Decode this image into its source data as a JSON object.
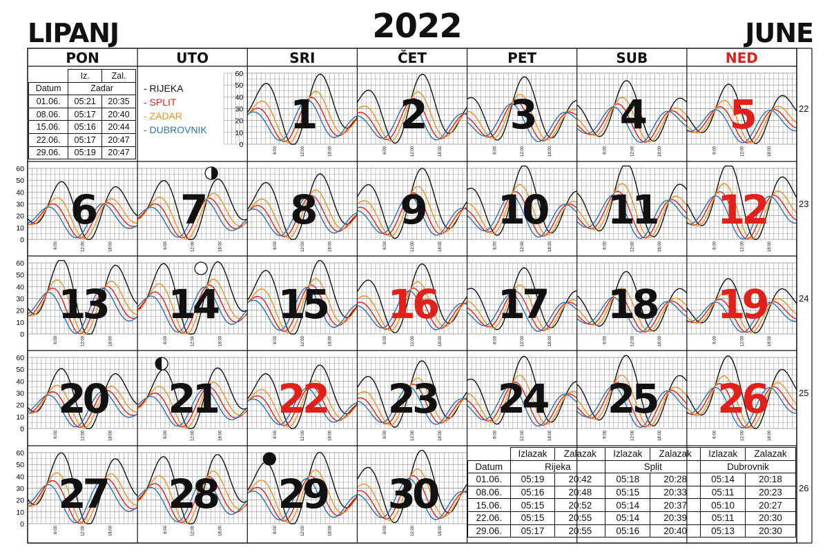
{
  "header": {
    "left_title": "LIPANJ",
    "year": "2022",
    "right_title": "JUNE"
  },
  "weekdays": [
    {
      "label": "PON",
      "color": "#111111"
    },
    {
      "label": "UTO",
      "color": "#111111"
    },
    {
      "label": "SRI",
      "color": "#111111"
    },
    {
      "label": "ČET",
      "color": "#111111"
    },
    {
      "label": "PET",
      "color": "#111111"
    },
    {
      "label": "SUB",
      "color": "#111111"
    },
    {
      "label": "NED",
      "color": "#e0201a"
    }
  ],
  "week_numbers": [
    "22",
    "23",
    "24",
    "25",
    "26"
  ],
  "legend": [
    {
      "label": "- RIJEKA",
      "color": "#111111"
    },
    {
      "label": "- SPLIT",
      "color": "#e0201a"
    },
    {
      "label": "- ZADAR",
      "color": "#f0901c"
    },
    {
      "label": "- DUBROVNIK",
      "color": "#2a6fb8"
    }
  ],
  "sun_table_small": {
    "header": [
      "",
      "Iz.",
      "Zal."
    ],
    "subheader": [
      "Datum",
      "Zadar"
    ],
    "rows": [
      [
        "01.06.",
        "05:21",
        "20:35"
      ],
      [
        "08.06.",
        "05:17",
        "20:40"
      ],
      [
        "15.06.",
        "05:16",
        "20:44"
      ],
      [
        "22.06.",
        "05:17",
        "20:47"
      ],
      [
        "29.06.",
        "05:19",
        "20:47"
      ]
    ]
  },
  "sun_table_big": {
    "header": [
      "",
      "Izlazak",
      "Zalazak",
      "Izlazak",
      "Zalazak",
      "Izlazak",
      "Zalazak"
    ],
    "subheader": [
      "Datum",
      "Rijeka",
      "Split",
      "Dubrovnik"
    ],
    "rows": [
      [
        "01.06.",
        "05:19",
        "20:42",
        "05:18",
        "20:28",
        "05:14",
        "20:18"
      ],
      [
        "08.06.",
        "05:16",
        "20:48",
        "05:15",
        "20:33",
        "05:11",
        "20:23"
      ],
      [
        "15.06.",
        "05:15",
        "20:52",
        "05:14",
        "20:37",
        "05:10",
        "20:27"
      ],
      [
        "22.06.",
        "05:15",
        "20:55",
        "05:14",
        "20:39",
        "05:11",
        "20:30"
      ],
      [
        "29.06.",
        "05:17",
        "20:55",
        "05:16",
        "20:40",
        "05:13",
        "20:30"
      ]
    ]
  },
  "chart_data": {
    "type": "line",
    "ylim": [
      0,
      60
    ],
    "yticks": [
      "0",
      "10",
      "20",
      "30",
      "40",
      "50",
      "60"
    ],
    "xticks": [
      "6:00",
      "12:00",
      "18:00"
    ],
    "series": [
      {
        "name": "RIJEKA",
        "color": "#111111"
      },
      {
        "name": "SPLIT",
        "color": "#e0201a"
      },
      {
        "name": "ZADAR",
        "color": "#f0901c"
      },
      {
        "name": "DUBROVNIK",
        "color": "#2a6fb8"
      }
    ],
    "days": [
      {
        "day": "1",
        "week": 0,
        "col": 2,
        "color": "#111111",
        "peak": 58
      },
      {
        "day": "2",
        "week": 0,
        "col": 3,
        "color": "#111111",
        "peak": 56
      },
      {
        "day": "3",
        "week": 0,
        "col": 4,
        "color": "#111111",
        "peak": 53
      },
      {
        "day": "4",
        "week": 0,
        "col": 5,
        "color": "#111111",
        "peak": 50
      },
      {
        "day": "5",
        "week": 0,
        "col": 6,
        "color": "#e0201a",
        "peak": 48
      },
      {
        "day": "6",
        "week": 1,
        "col": 0,
        "color": "#111111",
        "peak": 48
      },
      {
        "day": "7",
        "week": 1,
        "col": 1,
        "color": "#111111",
        "peak": 52
      },
      {
        "day": "8",
        "week": 1,
        "col": 2,
        "color": "#111111",
        "peak": 54
      },
      {
        "day": "9",
        "week": 1,
        "col": 3,
        "color": "#111111",
        "peak": 57
      },
      {
        "day": "10",
        "week": 1,
        "col": 4,
        "color": "#111111",
        "peak": 59
      },
      {
        "day": "11",
        "week": 1,
        "col": 5,
        "color": "#111111",
        "peak": 61
      },
      {
        "day": "12",
        "week": 1,
        "col": 6,
        "color": "#e0201a",
        "peak": 63
      },
      {
        "day": "13",
        "week": 2,
        "col": 0,
        "color": "#111111",
        "peak": 64
      },
      {
        "day": "14",
        "week": 2,
        "col": 1,
        "color": "#111111",
        "peak": 63
      },
      {
        "day": "15",
        "week": 2,
        "col": 2,
        "color": "#111111",
        "peak": 61
      },
      {
        "day": "16",
        "week": 2,
        "col": 3,
        "color": "#e0201a",
        "peak": 56
      },
      {
        "day": "17",
        "week": 2,
        "col": 4,
        "color": "#111111",
        "peak": 52
      },
      {
        "day": "18",
        "week": 2,
        "col": 5,
        "color": "#111111",
        "peak": 49
      },
      {
        "day": "19",
        "week": 2,
        "col": 6,
        "color": "#e0201a",
        "peak": 44
      },
      {
        "day": "20",
        "week": 3,
        "col": 0,
        "color": "#111111",
        "peak": 50
      },
      {
        "day": "21",
        "week": 3,
        "col": 1,
        "color": "#111111",
        "peak": 52
      },
      {
        "day": "22",
        "week": 3,
        "col": 2,
        "color": "#e0201a",
        "peak": 52
      },
      {
        "day": "23",
        "week": 3,
        "col": 3,
        "color": "#111111",
        "peak": 54
      },
      {
        "day": "24",
        "week": 3,
        "col": 4,
        "color": "#111111",
        "peak": 57
      },
      {
        "day": "25",
        "week": 3,
        "col": 5,
        "color": "#111111",
        "peak": 58
      },
      {
        "day": "26",
        "week": 3,
        "col": 6,
        "color": "#e0201a",
        "peak": 59
      },
      {
        "day": "27",
        "week": 4,
        "col": 0,
        "color": "#111111",
        "peak": 60
      },
      {
        "day": "28",
        "week": 4,
        "col": 1,
        "color": "#111111",
        "peak": 60
      },
      {
        "day": "29",
        "week": 4,
        "col": 2,
        "color": "#111111",
        "peak": 59
      },
      {
        "day": "30",
        "week": 4,
        "col": 3,
        "color": "#111111",
        "peak": 59
      }
    ],
    "moon_phases": [
      {
        "phase": "first-quarter",
        "week": 1,
        "col": 1
      },
      {
        "phase": "full",
        "week": 2,
        "col": 1
      },
      {
        "phase": "last-quarter",
        "week": 3,
        "col": 1
      },
      {
        "phase": "new",
        "week": 4,
        "col": 2
      }
    ]
  }
}
